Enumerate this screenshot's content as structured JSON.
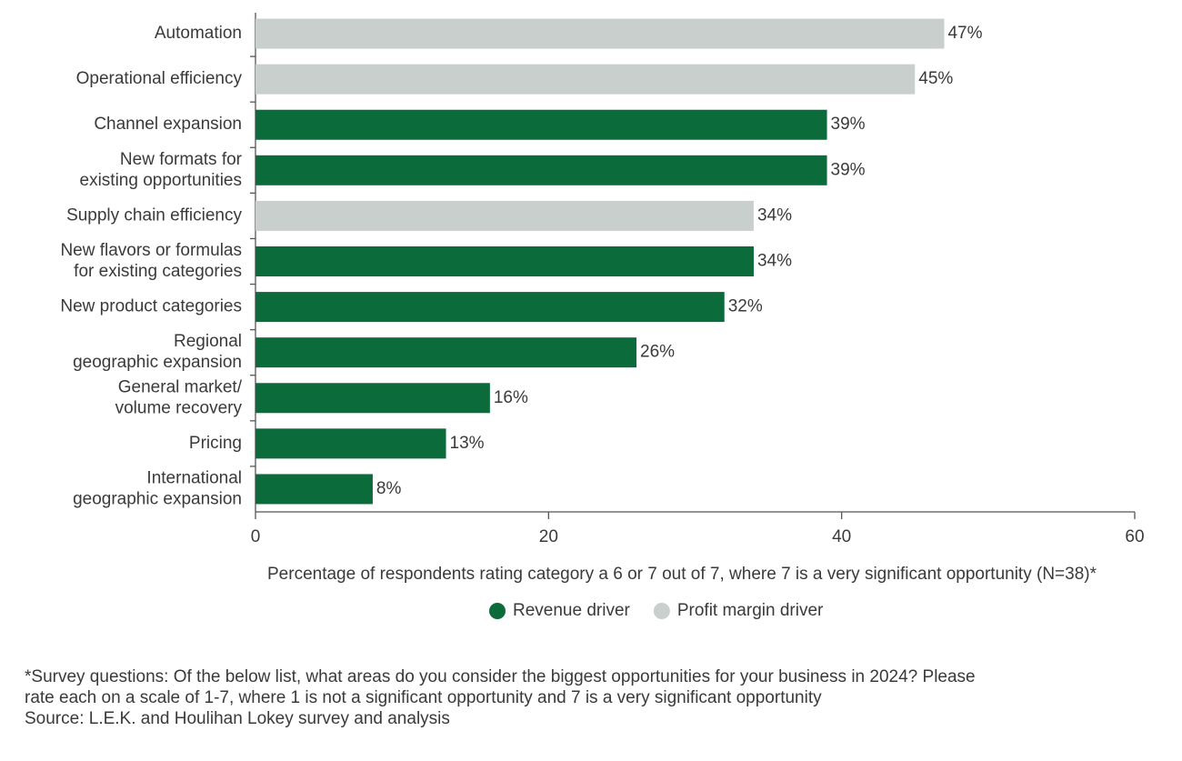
{
  "chart_data": {
    "type": "hbar",
    "categories": [
      [
        "Automation"
      ],
      [
        "Operational efficiency"
      ],
      [
        "Channel expansion"
      ],
      [
        "New formats for",
        "existing opportunities"
      ],
      [
        "Supply chain efficiency"
      ],
      [
        "New flavors or formulas",
        "for existing categories"
      ],
      [
        "New product categories"
      ],
      [
        "Regional",
        "geographic expansion"
      ],
      [
        "General market/",
        "volume recovery"
      ],
      [
        "Pricing"
      ],
      [
        "International",
        "geographic expansion"
      ]
    ],
    "series": [
      {
        "name": "Revenue driver",
        "color": "#0b6b3a",
        "values": [
          null,
          null,
          39,
          39,
          null,
          34,
          32,
          26,
          16,
          13,
          8
        ],
        "value_labels": [
          null,
          null,
          "39%",
          "39%",
          null,
          "34%",
          "32%",
          "26%",
          "16%",
          "13%",
          "8%"
        ]
      },
      {
        "name": "Profit margin driver",
        "color": "#c8cfcc",
        "values": [
          47,
          45,
          null,
          null,
          34,
          null,
          null,
          null,
          null,
          null,
          null
        ],
        "value_labels": [
          "47%",
          "45%",
          null,
          null,
          "34%",
          null,
          null,
          null,
          null,
          null,
          null
        ]
      }
    ],
    "xlim": [
      0,
      60
    ],
    "xticks": [
      0,
      20,
      40,
      60
    ],
    "xlabel": "Percentage of respondents rating category a 6 or 7 out of 7, where 7 is a very significant opportunity (N=38)*",
    "footnote": [
      "*Survey questions: Of the below list, what areas do you consider the biggest opportunities for your business in 2024? Please",
      "rate each on a scale of 1-7, where 1 is not a significant opportunity and 7 is a very significant opportunity",
      "Source: L.E.K. and Houlihan Lokey survey and analysis"
    ]
  }
}
